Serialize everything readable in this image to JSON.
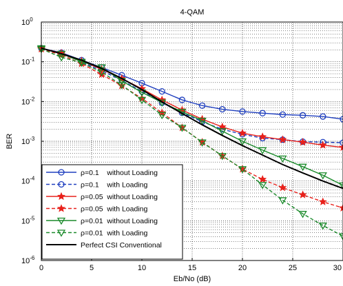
{
  "chart_data": {
    "type": "line",
    "title": "4-QAM",
    "xlabel": "Eb/No (dB)",
    "ylabel": "BER",
    "xlim": [
      0,
      30
    ],
    "ylim": [
      1e-06,
      1
    ],
    "y_scale": "log",
    "grid": true,
    "legend_position": "bottom-left",
    "x_ticks": [
      "0",
      "5",
      "10",
      "15",
      "20",
      "25",
      "30"
    ],
    "y_ticks": [
      {
        "base": "10",
        "exp": "0",
        "value": 1
      },
      {
        "base": "10",
        "exp": "-1",
        "value": 0.1
      },
      {
        "base": "10",
        "exp": "-2",
        "value": 0.01
      },
      {
        "base": "10",
        "exp": "-3",
        "value": 0.001
      },
      {
        "base": "10",
        "exp": "-4",
        "value": 0.0001
      },
      {
        "base": "10",
        "exp": "-5",
        "value": 1e-05
      },
      {
        "base": "10",
        "exp": "-6",
        "value": 1e-06
      }
    ],
    "x": [
      0,
      2,
      4,
      6,
      8,
      10,
      12,
      14,
      16,
      18,
      20,
      22,
      24,
      26,
      28,
      30
    ],
    "series": [
      {
        "name": "ρ=0.1    without Loading",
        "color": "#1f3fbf",
        "dash": "solid",
        "marker": "circle",
        "values": [
          0.22,
          0.17,
          0.11,
          0.072,
          0.046,
          0.029,
          0.018,
          0.011,
          0.0079,
          0.0064,
          0.0056,
          0.0051,
          0.0047,
          0.0045,
          0.0042,
          0.0036
        ]
      },
      {
        "name": "ρ=0.1    with Loading",
        "color": "#1f3fbf",
        "dash": "dashed",
        "marker": "circle",
        "values": [
          0.22,
          0.16,
          0.1,
          0.06,
          0.034,
          0.018,
          0.0093,
          0.0052,
          0.0031,
          0.002,
          0.0015,
          0.0012,
          0.0011,
          0.00098,
          0.00095,
          0.00092
        ]
      },
      {
        "name": "ρ=0.05  without Loading",
        "color": "#e8201a",
        "dash": "solid",
        "marker": "star",
        "values": [
          0.22,
          0.165,
          0.105,
          0.065,
          0.038,
          0.021,
          0.011,
          0.0061,
          0.0036,
          0.0023,
          0.0016,
          0.0013,
          0.0011,
          0.00095,
          0.0008,
          0.0007
        ]
      },
      {
        "name": "ρ=0.05  with Loading",
        "color": "#e8201a",
        "dash": "dashed",
        "marker": "star",
        "values": [
          0.21,
          0.15,
          0.09,
          0.048,
          0.025,
          0.012,
          0.0052,
          0.0022,
          0.00095,
          0.00043,
          0.0002,
          0.00011,
          6.8e-05,
          4.5e-05,
          3e-05,
          2.1e-05
        ]
      },
      {
        "name": "ρ=0.01  without Loading",
        "color": "#1a8a2a",
        "dash": "solid",
        "marker": "triangle-down",
        "values": [
          0.22,
          0.16,
          0.1,
          0.073,
          0.033,
          0.017,
          0.0095,
          0.0055,
          0.0033,
          0.0018,
          0.001,
          0.0006,
          0.00037,
          0.00023,
          0.00014,
          7.8e-05
        ]
      },
      {
        "name": "ρ=0.01  with Loading",
        "color": "#1a8a2a",
        "dash": "dashed",
        "marker": "triangle-down",
        "values": [
          0.21,
          0.13,
          0.095,
          0.055,
          0.026,
          0.011,
          0.0046,
          0.0022,
          0.00094,
          0.00043,
          0.0002,
          8e-05,
          3.3e-05,
          1.5e-05,
          7.6e-06,
          4.1e-06
        ]
      },
      {
        "name": "Perfect CSI Conventional",
        "color": "#000000",
        "dash": "solid",
        "marker": "none",
        "values": [
          0.22,
          0.16,
          0.11,
          0.068,
          0.038,
          0.02,
          0.0098,
          0.005,
          0.0026,
          0.0014,
          0.00078,
          0.00045,
          0.00026,
          0.00016,
          0.0001,
          6.5e-05
        ]
      }
    ]
  }
}
